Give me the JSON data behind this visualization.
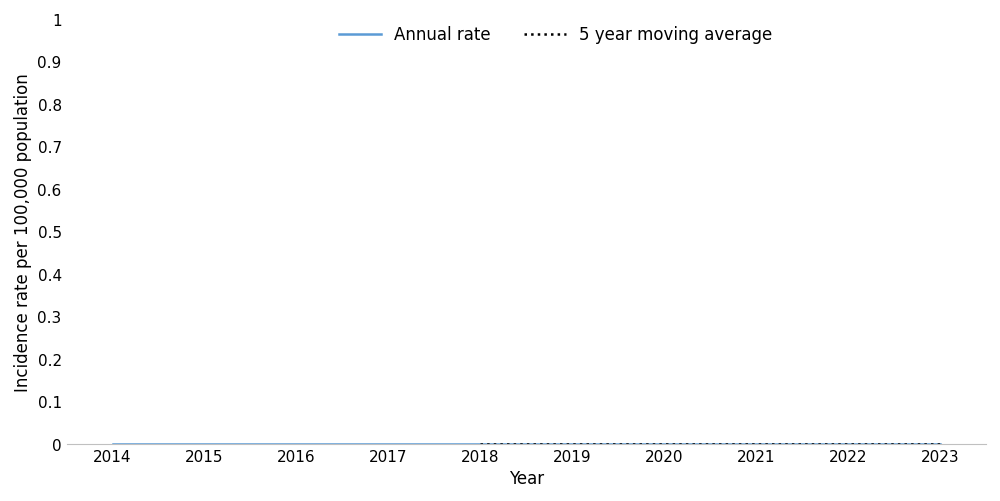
{
  "years": [
    2014,
    2015,
    2016,
    2017,
    2018,
    2019,
    2020,
    2021,
    2022,
    2023
  ],
  "annual_rate": [
    0,
    0,
    0,
    0,
    0,
    0,
    0,
    0,
    0,
    0
  ],
  "moving_avg": [
    null,
    null,
    null,
    null,
    0,
    0,
    0,
    0,
    0,
    0
  ],
  "annual_rate_color": "#5B9BD5",
  "moving_avg_color": "#000000",
  "ylabel": "Incidence rate per 100,000 population",
  "xlabel": "Year",
  "ylim": [
    0,
    1.0
  ],
  "yticks": [
    0,
    0.1,
    0.2,
    0.3,
    0.4,
    0.5,
    0.6,
    0.7,
    0.8,
    0.9,
    1
  ],
  "ytick_labels": [
    "0",
    "0.1",
    "0.2",
    "0.3",
    "0.4",
    "0.5",
    "0.6",
    "0.7",
    "0.8",
    "0.9",
    "1"
  ],
  "xlim": [
    2013.5,
    2023.5
  ],
  "legend_annual_label": "Annual rate",
  "legend_avg_label": "5 year moving average",
  "annual_rate_linewidth": 1.8,
  "moving_avg_linewidth": 1.8,
  "axis_fontsize": 12,
  "tick_fontsize": 11,
  "legend_fontsize": 12,
  "bottom_spine_color": "#C0C0C0"
}
